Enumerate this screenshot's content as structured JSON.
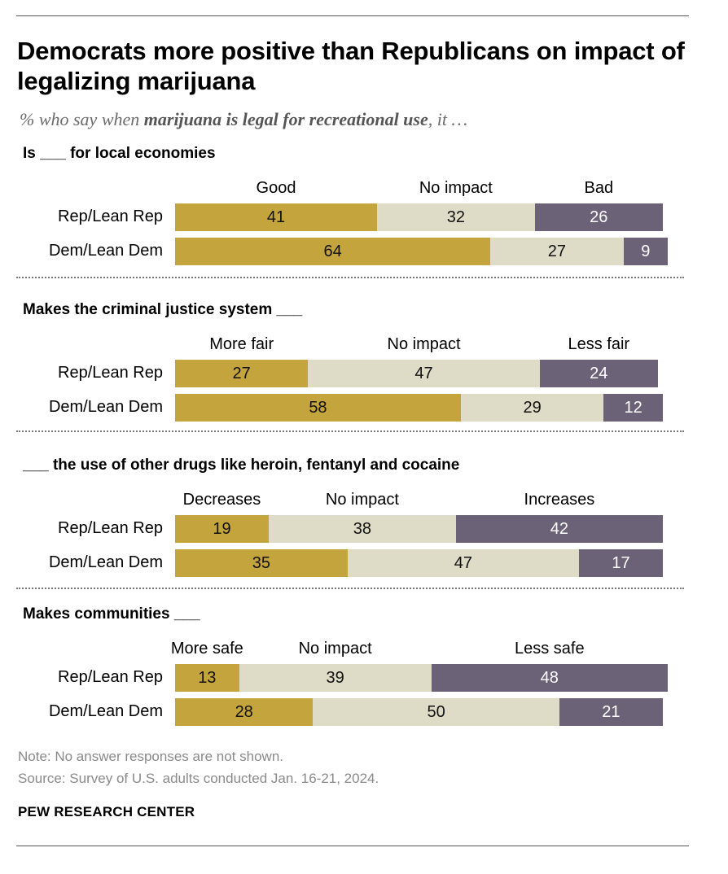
{
  "title": "Democrats more positive than Republicans on impact of legalizing marijuana",
  "subtitle": {
    "pre": "% who say when ",
    "bold": "marijuana is legal for recreational use",
    "post": ", it …"
  },
  "chart_data": {
    "type": "bar",
    "stacked": true,
    "orientation": "horizontal",
    "xlim": [
      0,
      100
    ],
    "colors": {
      "positive": "#c4a43c",
      "neutral": "#dedbc6",
      "negative": "#6b6277"
    },
    "panels": [
      {
        "title": "Is ___ for local economies",
        "categories": [
          "Good",
          "No impact",
          "Bad"
        ],
        "rows": [
          {
            "label": "Rep/Lean Rep",
            "values": [
              41,
              32,
              26
            ]
          },
          {
            "label": "Dem/Lean Dem",
            "values": [
              64,
              27,
              9
            ]
          }
        ]
      },
      {
        "title": "Makes the criminal justice system ___",
        "categories": [
          "More fair",
          "No impact",
          "Less fair"
        ],
        "rows": [
          {
            "label": "Rep/Lean Rep",
            "values": [
              27,
              47,
              24
            ]
          },
          {
            "label": "Dem/Lean Dem",
            "values": [
              58,
              29,
              12
            ]
          }
        ]
      },
      {
        "title": "___ the use of other drugs like heroin, fentanyl and cocaine",
        "categories": [
          "Decreases",
          "No impact",
          "Increases"
        ],
        "rows": [
          {
            "label": "Rep/Lean Rep",
            "values": [
              19,
              38,
              42
            ]
          },
          {
            "label": "Dem/Lean Dem",
            "values": [
              35,
              47,
              17
            ]
          }
        ]
      },
      {
        "title": "Makes communities ___",
        "categories": [
          "More safe",
          "No impact",
          "Less safe"
        ],
        "rows": [
          {
            "label": "Rep/Lean Rep",
            "values": [
              13,
              39,
              48
            ]
          },
          {
            "label": "Dem/Lean Dem",
            "values": [
              28,
              50,
              21
            ]
          }
        ]
      }
    ]
  },
  "note": "Note: No answer responses are not shown.",
  "source": "Source: Survey of U.S. adults conducted Jan. 16-21, 2024.",
  "brand": "PEW RESEARCH CENTER"
}
